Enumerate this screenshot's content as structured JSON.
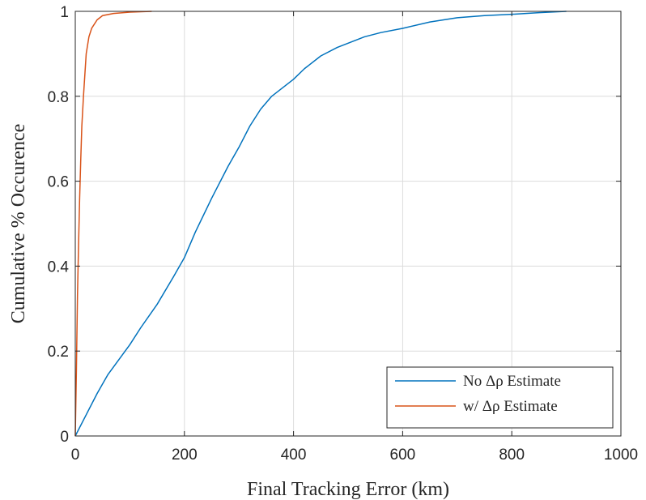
{
  "chart_data": {
    "type": "line",
    "xlabel": "Final Tracking Error (km)",
    "ylabel": "Cumulative % Occurence",
    "xlim": [
      0,
      1000
    ],
    "ylim": [
      0,
      1
    ],
    "xticks": [
      0,
      200,
      400,
      600,
      800,
      1000
    ],
    "xtick_labels": [
      "0",
      "200",
      "400",
      "600",
      "800",
      "1000"
    ],
    "yticks": [
      0,
      0.2,
      0.4,
      0.6,
      0.8,
      1
    ],
    "ytick_labels": [
      "0",
      "0.2",
      "0.4",
      "0.6",
      "0.8",
      "1"
    ],
    "grid": true,
    "legend_position": "bottom-right",
    "series": [
      {
        "name": "No Δρ Estimate",
        "color": "#0072BD",
        "points": [
          [
            0,
            0
          ],
          [
            20,
            0.05
          ],
          [
            40,
            0.1
          ],
          [
            60,
            0.145
          ],
          [
            80,
            0.18
          ],
          [
            100,
            0.215
          ],
          [
            120,
            0.255
          ],
          [
            150,
            0.31
          ],
          [
            180,
            0.375
          ],
          [
            200,
            0.42
          ],
          [
            220,
            0.48
          ],
          [
            250,
            0.56
          ],
          [
            280,
            0.635
          ],
          [
            300,
            0.68
          ],
          [
            320,
            0.73
          ],
          [
            340,
            0.77
          ],
          [
            360,
            0.8
          ],
          [
            380,
            0.82
          ],
          [
            400,
            0.84
          ],
          [
            420,
            0.865
          ],
          [
            450,
            0.895
          ],
          [
            480,
            0.915
          ],
          [
            500,
            0.925
          ],
          [
            530,
            0.94
          ],
          [
            560,
            0.95
          ],
          [
            600,
            0.96
          ],
          [
            650,
            0.975
          ],
          [
            700,
            0.985
          ],
          [
            750,
            0.99
          ],
          [
            800,
            0.993
          ],
          [
            850,
            0.997
          ],
          [
            900,
            1.0
          ]
        ]
      },
      {
        "name": "w/ Δρ Estimate",
        "color": "#D95319",
        "points": [
          [
            0,
            0
          ],
          [
            2,
            0.15
          ],
          [
            4,
            0.33
          ],
          [
            6,
            0.45
          ],
          [
            8,
            0.56
          ],
          [
            10,
            0.65
          ],
          [
            12,
            0.73
          ],
          [
            15,
            0.8
          ],
          [
            18,
            0.86
          ],
          [
            20,
            0.9
          ],
          [
            25,
            0.94
          ],
          [
            30,
            0.96
          ],
          [
            40,
            0.98
          ],
          [
            50,
            0.99
          ],
          [
            70,
            0.995
          ],
          [
            100,
            0.998
          ],
          [
            140,
            1.0
          ]
        ]
      }
    ]
  }
}
